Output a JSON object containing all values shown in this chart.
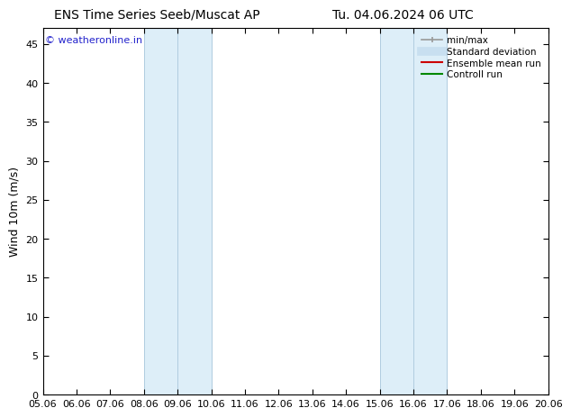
{
  "title_left": "ENS Time Series Seeb/Muscat AP",
  "title_right": "Tu. 04.06.2024 06 UTC",
  "ylabel": "Wind 10m (m/s)",
  "watermark": "© weatheronline.in",
  "xlim_start": 5.06,
  "xlim_end": 20.06,
  "ylim": [
    0,
    47
  ],
  "yticks": [
    0,
    5,
    10,
    15,
    20,
    25,
    30,
    35,
    40,
    45
  ],
  "xticks": [
    5.06,
    6.06,
    7.06,
    8.06,
    9.06,
    10.06,
    11.06,
    12.06,
    13.06,
    14.06,
    15.06,
    16.06,
    17.06,
    18.06,
    19.06,
    20.06
  ],
  "xtick_labels": [
    "05.06",
    "06.06",
    "07.06",
    "08.06",
    "09.06",
    "10.06",
    "11.06",
    "12.06",
    "13.06",
    "14.06",
    "15.06",
    "16.06",
    "17.06",
    "18.06",
    "19.06",
    "20.06"
  ],
  "shaded_regions": [
    {
      "xmin": 8.06,
      "xmax": 10.06,
      "color": "#ddeef8"
    },
    {
      "xmin": 15.06,
      "xmax": 17.06,
      "color": "#ddeef8"
    }
  ],
  "shaded_border_color": "#b0cce0",
  "vertical_lines_inner": [
    9.06,
    16.06
  ],
  "bg_color": "#ffffff",
  "plot_bg_color": "#ffffff",
  "title_fontsize": 10,
  "title_font": "DejaVu Sans",
  "watermark_color": "#2222cc",
  "watermark_fontsize": 8,
  "ylabel_fontsize": 9,
  "tick_fontsize": 8,
  "legend_entries": [
    {
      "label": "min/max",
      "color": "#999999",
      "lw": 1.2
    },
    {
      "label": "Standard deviation",
      "color": "#c8dff0",
      "lw": 7
    },
    {
      "label": "Ensemble mean run",
      "color": "#cc0000",
      "lw": 1.5
    },
    {
      "label": "Controll run",
      "color": "#008800",
      "lw": 1.5
    }
  ]
}
